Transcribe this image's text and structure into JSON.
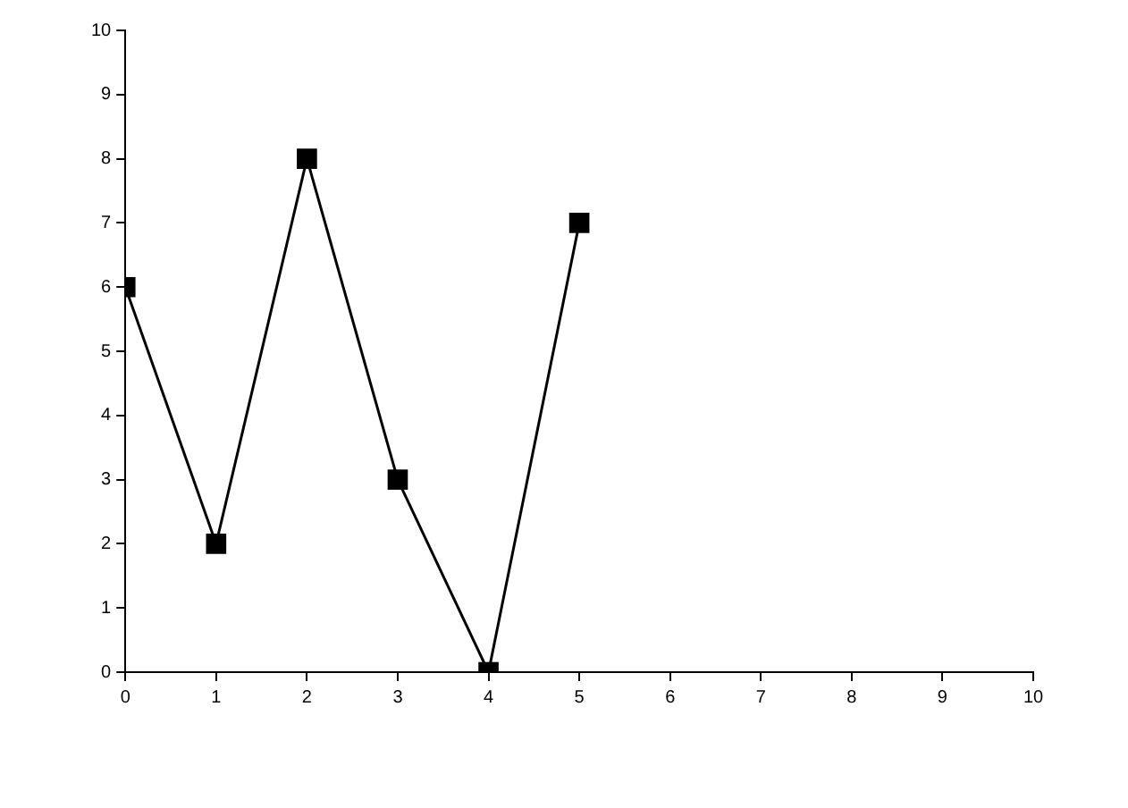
{
  "chart_data": {
    "type": "line",
    "x": [
      0,
      1,
      2,
      3,
      4,
      5
    ],
    "series": [
      {
        "color": "#000000",
        "values": [
          6,
          2,
          8,
          3,
          0,
          7
        ]
      }
    ],
    "xlim": [
      0,
      10
    ],
    "ylim": [
      0,
      10
    ],
    "xticks": [
      0,
      1,
      2,
      3,
      4,
      5,
      6,
      7,
      8,
      9,
      10
    ],
    "yticks": [
      0,
      1,
      2,
      3,
      4,
      5,
      6,
      7,
      8,
      9,
      10
    ],
    "grid": false,
    "legend": false,
    "marker": "square",
    "line_style": "solid"
  }
}
